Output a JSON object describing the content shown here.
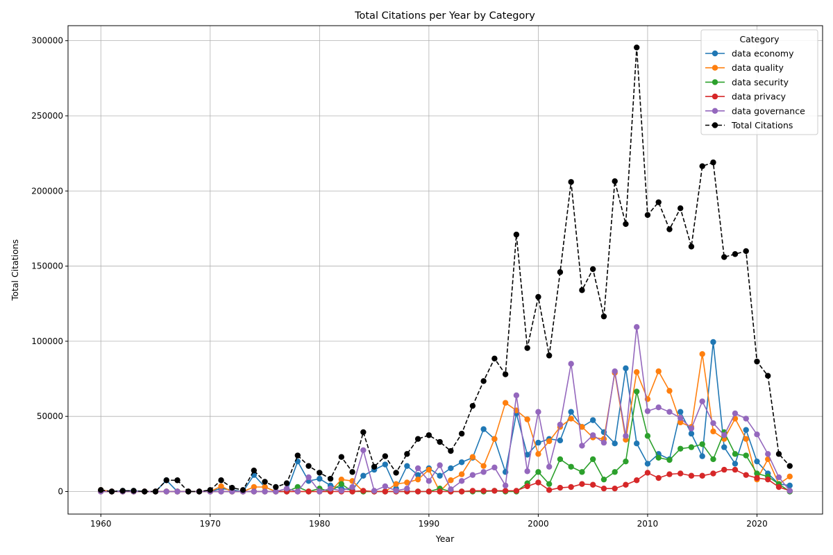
{
  "chart_data": {
    "type": "line",
    "title": "Total Citations per Year by Category",
    "xlabel": "Year",
    "ylabel": "Total Citations",
    "xlim": [
      1957,
      2026
    ],
    "ylim": [
      -15000,
      310000
    ],
    "x_ticks": [
      1960,
      1970,
      1980,
      1990,
      2000,
      2010,
      2020
    ],
    "y_ticks": [
      0,
      50000,
      100000,
      150000,
      200000,
      250000,
      300000
    ],
    "grid": true,
    "legend": {
      "title": "Category",
      "location": "upper right"
    },
    "x": [
      1960,
      1961,
      1962,
      1963,
      1964,
      1965,
      1966,
      1967,
      1968,
      1969,
      1970,
      1971,
      1972,
      1973,
      1974,
      1975,
      1976,
      1977,
      1978,
      1979,
      1980,
      1981,
      1982,
      1983,
      1984,
      1985,
      1986,
      1987,
      1988,
      1989,
      1990,
      1991,
      1992,
      1993,
      1994,
      1995,
      1996,
      1997,
      1998,
      1999,
      2000,
      2001,
      2002,
      2003,
      2004,
      2005,
      2006,
      2007,
      2008,
      2009,
      2010,
      2011,
      2012,
      2013,
      2014,
      2015,
      2016,
      2017,
      2018,
      2019,
      2020,
      2021,
      2022,
      2023
    ],
    "series": [
      {
        "name": "data economy",
        "color": "#1f77b4",
        "style": "solid",
        "values": [
          1000,
          0,
          500,
          500,
          0,
          0,
          7500,
          0,
          0,
          0,
          0,
          2000,
          1000,
          0,
          11000,
          3000,
          0,
          0,
          20000,
          7000,
          8500,
          4000,
          2000,
          1000,
          10500,
          14500,
          18000,
          2000,
          17000,
          11000,
          15500,
          10500,
          15500,
          19500,
          22500,
          41500,
          35000,
          13000,
          52000,
          24500,
          32500,
          35000,
          34000,
          53000,
          43000,
          47500,
          39500,
          32000,
          82000,
          32000,
          18500,
          25000,
          21500,
          53000,
          38500,
          23500,
          99500,
          29500,
          18500,
          41000,
          20000,
          12000,
          5000,
          4000
        ]
      },
      {
        "name": "data quality",
        "color": "#ff7f0e",
        "style": "solid",
        "values": [
          1000,
          0,
          0,
          0,
          0,
          0,
          0,
          0,
          0,
          0,
          0,
          3500,
          0,
          0,
          3000,
          3000,
          0,
          0,
          0,
          0,
          0,
          0,
          8000,
          7000,
          0,
          0,
          0,
          5000,
          6000,
          8000,
          14500,
          0,
          7500,
          11500,
          23000,
          17000,
          35000,
          59000,
          54000,
          48000,
          25000,
          33500,
          43000,
          48500,
          43000,
          36000,
          35000,
          79000,
          34500,
          79500,
          61500,
          80000,
          67000,
          46000,
          43000,
          91500,
          40000,
          35000,
          48500,
          35000,
          8000,
          21500,
          5000,
          10000
        ]
      },
      {
        "name": "data security",
        "color": "#2ca02c",
        "style": "solid",
        "values": [
          0,
          0,
          0,
          0,
          0,
          0,
          0,
          0,
          0,
          0,
          0,
          0,
          0,
          0,
          0,
          0,
          0,
          0,
          3000,
          0,
          2000,
          0,
          5000,
          0,
          0,
          0,
          0,
          0,
          0,
          0,
          0,
          2000,
          0,
          0,
          0,
          0,
          500,
          0,
          0,
          5500,
          13000,
          5000,
          21500,
          16500,
          13000,
          21500,
          8000,
          13000,
          20000,
          66500,
          37000,
          22500,
          21000,
          28500,
          29500,
          31500,
          21500,
          39500,
          25000,
          24000,
          12000,
          10000,
          5000,
          0
        ]
      },
      {
        "name": "data privacy",
        "color": "#d62728",
        "style": "solid",
        "values": [
          0,
          0,
          0,
          0,
          0,
          0,
          0,
          0,
          0,
          0,
          0,
          0,
          0,
          0,
          0,
          0,
          0,
          0,
          0,
          0,
          0,
          0,
          0,
          0,
          500,
          0,
          0,
          0,
          0,
          0,
          0,
          0,
          0,
          0,
          500,
          500,
          500,
          500,
          500,
          3500,
          6000,
          1000,
          2500,
          3000,
          5000,
          4500,
          2000,
          2000,
          4500,
          7500,
          12500,
          9000,
          11500,
          12000,
          10500,
          10500,
          12000,
          14500,
          14500,
          11000,
          9000,
          8000,
          3000,
          500
        ]
      },
      {
        "name": "data governance",
        "color": "#9467bd",
        "style": "solid",
        "values": [
          0,
          0,
          0,
          0,
          0,
          0,
          0,
          0,
          0,
          0,
          0,
          0,
          0,
          0,
          0,
          0,
          0,
          2000,
          0,
          9500,
          0,
          2000,
          500,
          3000,
          27500,
          500,
          3500,
          500,
          2000,
          15500,
          7000,
          17500,
          1500,
          7000,
          11000,
          13000,
          16000,
          4000,
          64000,
          13500,
          53000,
          16500,
          44500,
          85000,
          30500,
          37500,
          32500,
          80000,
          37000,
          109500,
          53500,
          56000,
          53000,
          49000,
          42000,
          60000,
          45500,
          37500,
          52000,
          48500,
          38000,
          25000,
          9500,
          500
        ]
      },
      {
        "name": "Total Citations",
        "color": "#000000",
        "style": "dashed",
        "values": [
          1000,
          0,
          500,
          500,
          0,
          0,
          7500,
          7500,
          0,
          0,
          1000,
          7500,
          2500,
          1000,
          14000,
          6500,
          3000,
          5500,
          24000,
          17000,
          12500,
          8500,
          23000,
          13000,
          39500,
          16500,
          23500,
          12500,
          25000,
          35000,
          37500,
          33000,
          27000,
          38500,
          57000,
          73500,
          88500,
          78000,
          171000,
          95500,
          129500,
          90500,
          146000,
          206000,
          134000,
          148000,
          116500,
          206500,
          178000,
          295500,
          184000,
          192500,
          174500,
          188500,
          163000,
          216500,
          219000,
          156000,
          158000,
          160000,
          86500,
          77000,
          25000,
          17000
        ]
      }
    ]
  }
}
